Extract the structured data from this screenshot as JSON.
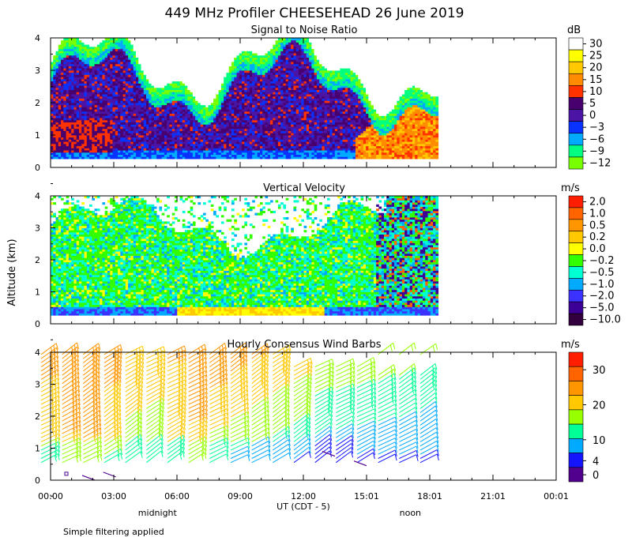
{
  "title": "449 MHz Profiler CHEESEHEAD 26 June 2019",
  "y_axis_label": "Altitude (km)",
  "x_axis_label": "UT  (CDT - 5)",
  "footnote": "Simple filtering applied",
  "local_time_markers": [
    {
      "label": "midnight",
      "hour": 5.0
    },
    {
      "label": "noon",
      "hour": 17.0
    }
  ],
  "chart_data": [
    {
      "type": "heatmap",
      "title": "Signal to Noise Ratio",
      "unit": "dB",
      "ylim": [
        0,
        4
      ],
      "yticks": [
        "0",
        "1",
        "2",
        "3",
        "4"
      ],
      "data_extent_hours": [
        0,
        18.4
      ],
      "colorbar": [
        "30",
        "25",
        "20",
        "15",
        "10",
        "5",
        "0",
        "−3",
        "−6",
        "−9",
        "−12"
      ],
      "colors": [
        "#ffffff",
        "#ffff00",
        "#ffc800",
        "#ff8c00",
        "#ff3200",
        "#48006e",
        "#4b14a5",
        "#0a32ff",
        "#00aaff",
        "#00ff80",
        "#78ff00"
      ]
    },
    {
      "type": "heatmap",
      "title": "Vertical Velocity",
      "unit": "m/s",
      "ylim": [
        0,
        4
      ],
      "yticks": [
        "0",
        "1",
        "2",
        "3",
        "4"
      ],
      "data_extent_hours": [
        0,
        18.4
      ],
      "colorbar": [
        "2.0",
        "1.0",
        "0.5",
        "0.2",
        "0.0",
        "−0.2",
        "−0.5",
        "−1.0",
        "−2.0",
        "−5.0",
        "−10.0"
      ],
      "colors": [
        "#ff1e00",
        "#ff6400",
        "#ff9600",
        "#ffc800",
        "#ffff00",
        "#32ff00",
        "#00ffd2",
        "#00aaff",
        "#3c32ff",
        "#3c0096",
        "#32003c"
      ]
    },
    {
      "type": "wind_barbs",
      "title": "Hourly Consensus Wind Barbs",
      "unit": "m/s",
      "ylim": [
        0,
        4
      ],
      "yticks": [
        "0",
        "1",
        "2",
        "3",
        "4"
      ],
      "data_extent_hours": [
        0,
        18.4
      ],
      "colorbar": [
        "30",
        "20",
        "10",
        "4",
        "0"
      ],
      "colorbar_values": [
        30,
        20,
        10,
        4,
        0
      ],
      "colorbar_range": [
        -2,
        35
      ],
      "colors": [
        "#ff1e00",
        "#ff6400",
        "#ff9600",
        "#ffc800",
        "#96ff00",
        "#00ff96",
        "#00aaff",
        "#1414ff",
        "#50008c"
      ]
    }
  ],
  "xticks": [
    "00:00",
    "03:00",
    "06:00",
    "09:00",
    "12:00",
    "15:01",
    "18:01",
    "21:01",
    "00:01"
  ],
  "xtick_hours": [
    0,
    3,
    6,
    9,
    12,
    15,
    18,
    21,
    24
  ]
}
